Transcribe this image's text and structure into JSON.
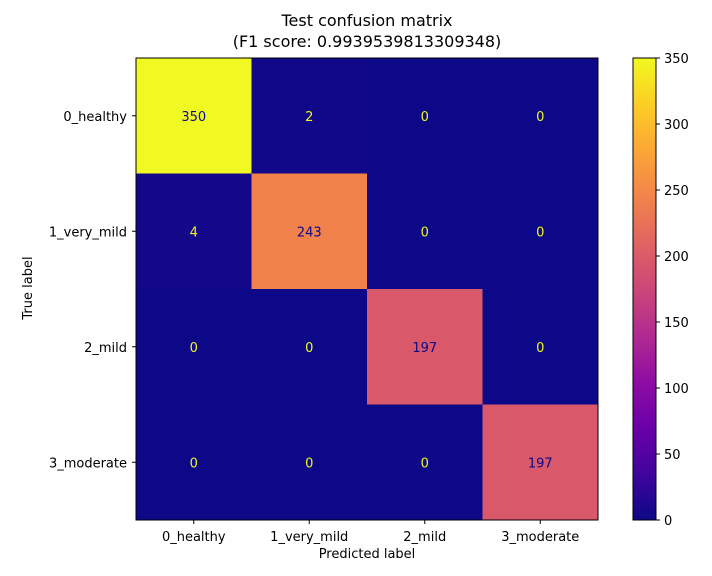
{
  "chart_data": {
    "type": "heatmap",
    "title": "Test confusion matrix",
    "subtitle": "(F1 score: 0.9939539813309348)",
    "xlabel": "Predicted label",
    "ylabel": "True label",
    "x_categories": [
      "0_healthy",
      "1_very_mild",
      "2_mild",
      "3_moderate"
    ],
    "y_categories": [
      "0_healthy",
      "1_very_mild",
      "2_mild",
      "3_moderate"
    ],
    "values": [
      [
        350,
        2,
        0,
        0
      ],
      [
        4,
        243,
        0,
        0
      ],
      [
        0,
        0,
        197,
        0
      ],
      [
        0,
        0,
        0,
        197
      ]
    ],
    "colormap": "plasma",
    "colorbar": {
      "range": [
        0,
        350
      ],
      "ticks": [
        0,
        50,
        100,
        150,
        200,
        250,
        300,
        350
      ]
    },
    "colors": {
      "low": "#0d0887",
      "high": "#f0f921",
      "label_on_dark": "#f0f921",
      "label_on_light": "#0d0887"
    }
  }
}
